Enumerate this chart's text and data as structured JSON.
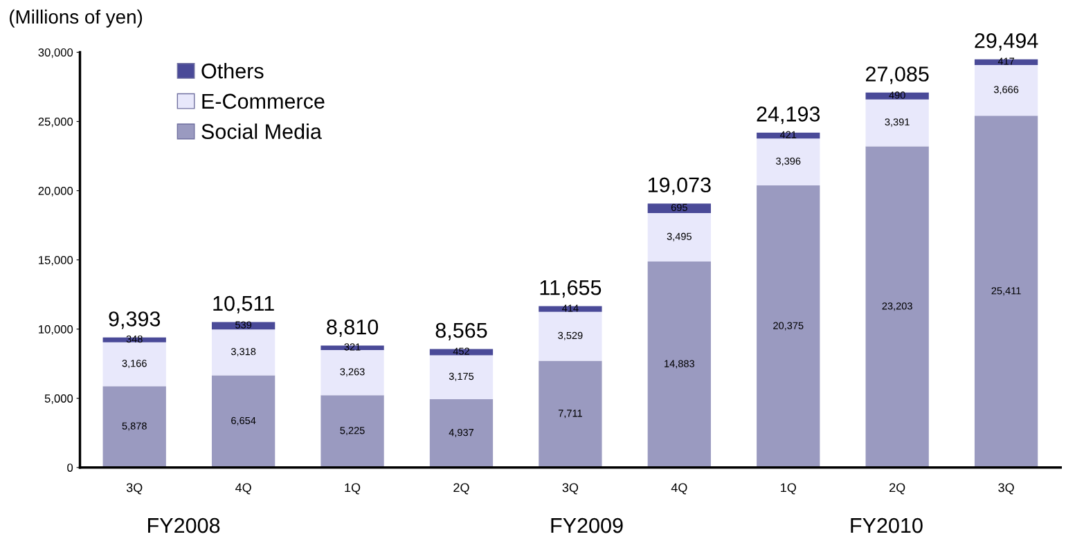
{
  "chart_data": {
    "type": "bar",
    "stacked": true,
    "ylabel": "(Millions of yen)",
    "categories": [
      "3Q",
      "4Q",
      "1Q",
      "2Q",
      "3Q",
      "4Q",
      "1Q",
      "2Q",
      "3Q"
    ],
    "series": [
      {
        "name": "Social Media",
        "color": "#9a9ac0",
        "values": [
          5878,
          6654,
          5225,
          4937,
          7711,
          14883,
          20375,
          23203,
          25411
        ],
        "value_labels": [
          "5,878",
          "6,654",
          "5,225",
          "4,937",
          "7,711",
          "14,883",
          "20,375",
          "23,203",
          "25,411"
        ]
      },
      {
        "name": "E-Commerce",
        "color": "#e8e8fb",
        "values": [
          3166,
          3318,
          3263,
          3175,
          3529,
          3495,
          3396,
          3391,
          3666
        ],
        "value_labels": [
          "3,166",
          "3,318",
          "3,263",
          "3,175",
          "3,529",
          "3,495",
          "3,396",
          "3,391",
          "3,666"
        ]
      },
      {
        "name": "Others",
        "color": "#4a4a98",
        "values": [
          348,
          539,
          321,
          452,
          414,
          695,
          421,
          490,
          417
        ],
        "value_labels": [
          "348",
          "539",
          "321",
          "452",
          "414",
          "695",
          "421",
          "490",
          "417"
        ]
      }
    ],
    "totals": [
      "9,393",
      "10,511",
      "8,810",
      "8,565",
      "11,655",
      "19,073",
      "24,193",
      "27,085",
      "29,494"
    ],
    "ylim": [
      0,
      30000
    ],
    "yticks": [
      0,
      {
        "value": 5000,
        "label": "5,000"
      },
      {
        "value": 10000,
        "label": "10,000"
      },
      {
        "value": 15000,
        "label": "15,000"
      },
      {
        "value": 20000,
        "label": "20,000"
      },
      {
        "value": 25000,
        "label": "25,000"
      },
      {
        "value": 30000,
        "label": "30,000"
      }
    ],
    "grid": false,
    "legend": "top left",
    "annotations": [
      "FY2008",
      "FY2009",
      "FY2010"
    ]
  }
}
